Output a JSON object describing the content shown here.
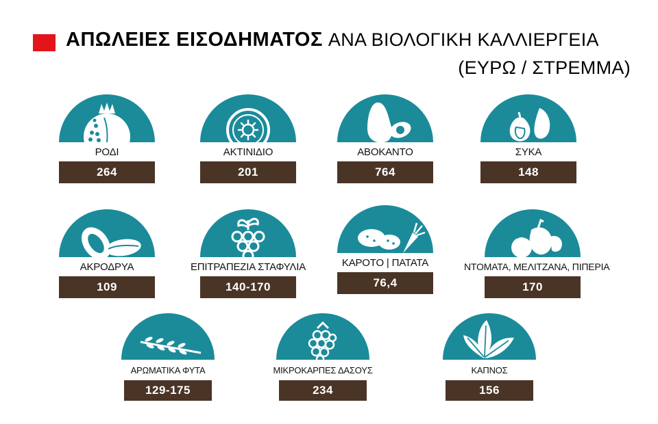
{
  "header": {
    "title_bold": "ΑΠΩΛΕΙΕΣ ΕΙΣΟΔΗΜΑΤΟΣ",
    "title_rest": "ΑΝΑ ΒΙΟΛΟΓΙΚΗ ΚΑΛΛΙΕΡΓΕΙΑ",
    "subtitle": "(ΕΥΡΩ / ΣΤΡΕΜΜΑ)"
  },
  "colors": {
    "accent_red": "#e3151a",
    "dome_teal": "#1b8b9a",
    "value_brown": "#4a3426"
  },
  "items": [
    {
      "label": "ΡΟΔΙ",
      "value": "264",
      "icon": "pomegranate-icon"
    },
    {
      "label": "ΑΚΤΙΝΙΔΙΟ",
      "value": "201",
      "icon": "kiwi-icon"
    },
    {
      "label": "ΑΒΟΚΑΝΤΟ",
      "value": "764",
      "icon": "avocado-icon"
    },
    {
      "label": "ΣΥΚΑ",
      "value": "148",
      "icon": "fig-icon"
    },
    {
      "label": "ΑΚΡΟΔΡΥΑ",
      "value": "109",
      "icon": "nuts-icon"
    },
    {
      "label": "ΕΠΙΤΡΑΠΕΖΙΑ ΣΤΑΦΥΛΙΑ",
      "value": "140-170",
      "icon": "grapes-icon"
    },
    {
      "label": "ΚΑΡΟΤΟ | ΠΑΤΑΤΑ",
      "value": "76,4",
      "icon": "carrot-potato-icon"
    },
    {
      "label": "ΝΤΟΜΑΤΑ, ΜΕΛΙΤΖΑΝΑ, ΠΙΠΕΡΙΑ",
      "value": "170",
      "icon": "vegetables-icon"
    },
    {
      "label": "ΑΡΩΜΑΤΙΚΑ ΦΥΤΑ",
      "value": "129-175",
      "icon": "herb-sprig-icon"
    },
    {
      "label": "ΜΙΚΡΟΚΑΡΠΕΣ ΔΑΣΟΥΣ",
      "value": "234",
      "icon": "raspberry-icon"
    },
    {
      "label": "ΚΑΠΝΟΣ",
      "value": "156",
      "icon": "tobacco-leaf-icon"
    }
  ]
}
